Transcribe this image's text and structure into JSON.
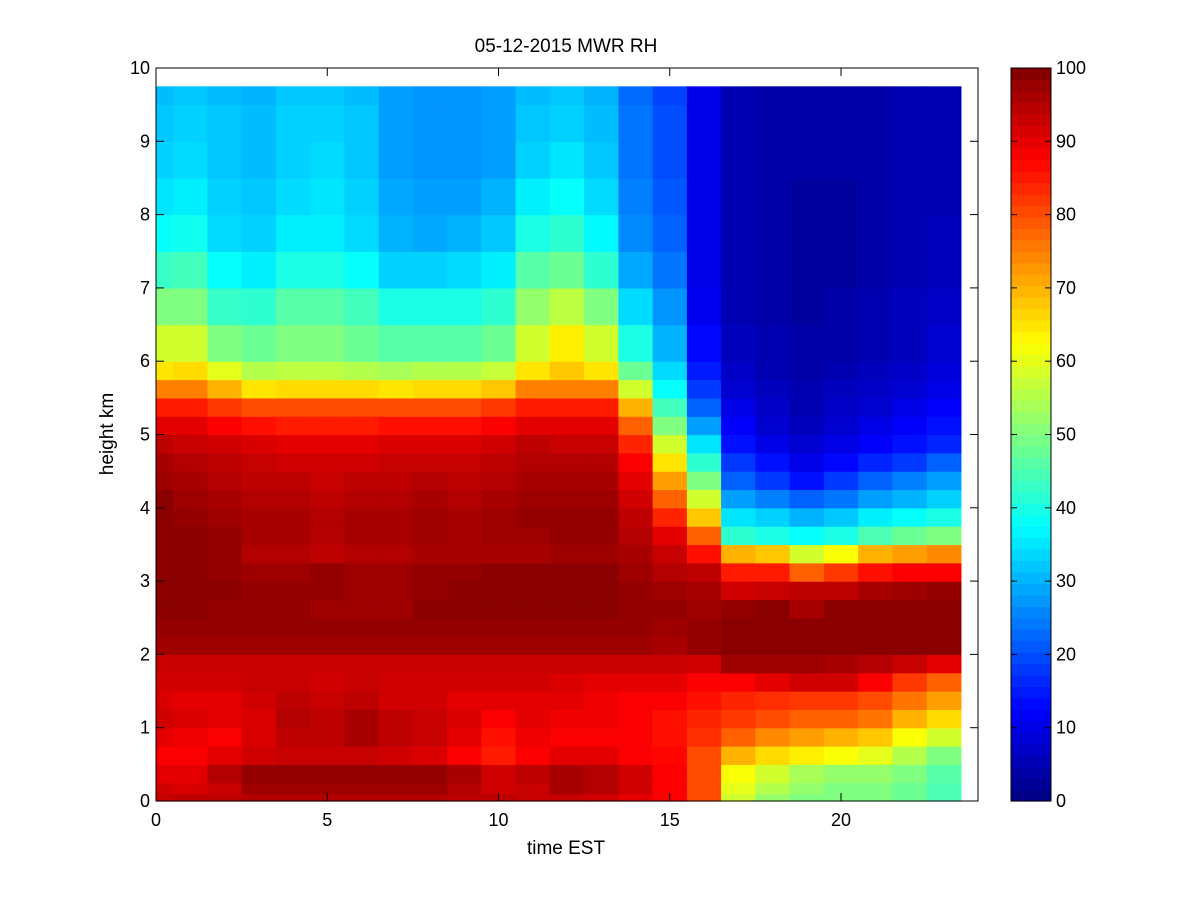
{
  "chart_data": {
    "type": "heatmap",
    "title": "05-12-2015 MWR RH",
    "xlabel": "time EST",
    "ylabel": "height km",
    "xlim": [
      0,
      24
    ],
    "ylim": [
      0,
      10
    ],
    "x_ticks": [
      0,
      5,
      10,
      15,
      20
    ],
    "y_ticks": [
      0,
      1,
      2,
      3,
      4,
      5,
      6,
      7,
      8,
      9,
      10
    ],
    "colorbar": {
      "colormap": "jet",
      "range": [
        0,
        100
      ],
      "ticks": [
        0,
        10,
        20,
        30,
        40,
        50,
        60,
        70,
        80,
        90,
        100
      ]
    },
    "time_hours": [
      0,
      1,
      2,
      3,
      4,
      5,
      6,
      7,
      8,
      9,
      10,
      11,
      12,
      13,
      14,
      15,
      16,
      17,
      18,
      19,
      20,
      21,
      22,
      23
    ],
    "height_km": [
      0.0,
      0.1,
      0.25,
      0.5,
      0.75,
      1.0,
      1.25,
      1.5,
      1.75,
      2.0,
      2.25,
      2.5,
      2.75,
      3.0,
      3.25,
      3.5,
      3.75,
      4.0,
      4.25,
      4.5,
      4.75,
      5.0,
      5.25,
      5.5,
      5.75,
      6.0,
      6.5,
      7.0,
      7.5,
      8.0,
      8.5,
      9.0,
      9.5,
      9.75
    ],
    "rh_percent": [
      [
        93,
        94,
        94,
        95,
        95,
        95,
        95,
        95,
        95,
        94,
        94,
        93,
        93,
        92,
        90,
        88,
        80,
        58,
        52,
        50,
        50,
        50,
        48,
        45
      ],
      [
        92,
        91,
        93,
        97,
        97,
        97,
        97,
        97,
        97,
        95,
        92,
        93,
        96,
        95,
        92,
        88,
        80,
        60,
        55,
        52,
        50,
        50,
        48,
        45
      ],
      [
        90,
        90,
        95,
        98,
        98,
        98,
        98,
        98,
        98,
        96,
        92,
        94,
        96,
        95,
        92,
        88,
        80,
        62,
        58,
        54,
        52,
        52,
        50,
        46
      ],
      [
        88,
        88,
        90,
        92,
        93,
        93,
        93,
        92,
        91,
        88,
        85,
        88,
        90,
        90,
        88,
        87,
        80,
        70,
        66,
        64,
        62,
        60,
        55,
        50
      ],
      [
        90,
        89,
        88,
        91,
        94,
        94,
        96,
        94,
        93,
        90,
        86,
        89,
        88,
        88,
        88,
        86,
        83,
        78,
        74,
        72,
        70,
        68,
        62,
        58
      ],
      [
        92,
        91,
        90,
        91,
        95,
        94,
        96,
        94,
        93,
        91,
        88,
        90,
        89,
        89,
        88,
        86,
        84,
        82,
        80,
        78,
        78,
        76,
        70,
        66
      ],
      [
        91,
        90,
        90,
        92,
        94,
        93,
        94,
        92,
        92,
        90,
        90,
        90,
        90,
        89,
        88,
        88,
        86,
        84,
        83,
        82,
        82,
        80,
        76,
        72
      ],
      [
        92,
        92,
        92,
        93,
        93,
        92,
        93,
        92,
        92,
        92,
        92,
        92,
        91,
        90,
        90,
        90,
        88,
        88,
        90,
        92,
        92,
        88,
        82,
        78
      ],
      [
        93,
        93,
        93,
        93,
        93,
        93,
        93,
        93,
        93,
        93,
        93,
        93,
        93,
        93,
        93,
        93,
        92,
        97,
        97,
        97,
        96,
        95,
        93,
        90
      ],
      [
        97,
        97,
        97,
        97,
        97,
        97,
        97,
        97,
        97,
        97,
        97,
        97,
        97,
        97,
        97,
        96,
        98,
        99,
        99,
        99,
        99,
        99,
        99,
        99
      ],
      [
        98,
        98,
        98,
        98,
        98,
        98,
        98,
        98,
        98,
        98,
        98,
        98,
        98,
        98,
        98,
        97,
        98,
        99,
        99,
        99,
        99,
        99,
        99,
        99
      ],
      [
        99,
        99,
        98,
        98,
        98,
        97,
        97,
        97,
        99,
        99,
        99,
        99,
        99,
        99,
        98,
        98,
        97,
        98,
        99,
        96,
        99,
        99,
        99,
        99
      ],
      [
        99,
        99,
        99,
        98,
        98,
        98,
        97,
        97,
        98,
        99,
        99,
        99,
        99,
        99,
        98,
        97,
        96,
        92,
        93,
        94,
        94,
        96,
        97,
        98
      ],
      [
        99,
        99,
        98,
        97,
        97,
        98,
        97,
        97,
        98,
        98,
        99,
        99,
        99,
        99,
        97,
        95,
        94,
        85,
        85,
        78,
        82,
        86,
        88,
        88
      ],
      [
        99,
        99,
        98,
        95,
        95,
        94,
        95,
        95,
        96,
        96,
        96,
        96,
        97,
        97,
        96,
        93,
        86,
        70,
        68,
        58,
        62,
        70,
        72,
        74
      ],
      [
        99,
        99,
        98,
        96,
        96,
        95,
        96,
        96,
        97,
        96,
        97,
        97,
        98,
        98,
        95,
        90,
        78,
        42,
        40,
        38,
        40,
        45,
        48,
        50
      ],
      [
        99,
        98,
        97,
        96,
        96,
        95,
        96,
        96,
        97,
        96,
        97,
        98,
        98,
        98,
        94,
        84,
        68,
        35,
        33,
        30,
        32,
        36,
        38,
        40
      ],
      [
        99,
        97,
        96,
        95,
        95,
        94,
        95,
        95,
        96,
        95,
        96,
        97,
        97,
        97,
        92,
        78,
        58,
        28,
        25,
        22,
        24,
        28,
        30,
        33
      ],
      [
        97,
        96,
        95,
        94,
        94,
        93,
        94,
        94,
        95,
        94,
        95,
        96,
        96,
        96,
        90,
        72,
        50,
        22,
        18,
        14,
        18,
        22,
        25,
        28
      ],
      [
        96,
        95,
        94,
        93,
        92,
        92,
        92,
        93,
        93,
        93,
        94,
        95,
        95,
        95,
        88,
        65,
        42,
        18,
        14,
        10,
        13,
        16,
        18,
        22
      ],
      [
        94,
        93,
        92,
        91,
        90,
        90,
        90,
        91,
        91,
        91,
        92,
        94,
        93,
        93,
        84,
        58,
        35,
        14,
        10,
        8,
        10,
        12,
        14,
        16
      ],
      [
        90,
        90,
        88,
        86,
        85,
        85,
        85,
        86,
        86,
        86,
        88,
        90,
        90,
        90,
        78,
        50,
        28,
        12,
        8,
        6,
        8,
        10,
        12,
        14
      ],
      [
        85,
        85,
        82,
        80,
        80,
        80,
        80,
        80,
        80,
        80,
        82,
        85,
        85,
        85,
        70,
        44,
        22,
        10,
        7,
        5,
        7,
        8,
        10,
        12
      ],
      [
        75,
        75,
        70,
        65,
        66,
        66,
        66,
        65,
        66,
        66,
        68,
        75,
        75,
        75,
        58,
        38,
        18,
        8,
        6,
        5,
        6,
        7,
        8,
        10
      ],
      [
        65,
        66,
        60,
        55,
        56,
        56,
        55,
        54,
        55,
        55,
        57,
        65,
        68,
        65,
        48,
        34,
        15,
        7,
        5,
        4,
        5,
        6,
        7,
        9
      ],
      [
        58,
        58,
        50,
        48,
        50,
        50,
        48,
        46,
        46,
        46,
        48,
        58,
        64,
        58,
        40,
        30,
        13,
        6,
        5,
        4,
        4,
        5,
        6,
        8
      ],
      [
        50,
        50,
        43,
        42,
        46,
        46,
        44,
        40,
        40,
        40,
        42,
        52,
        56,
        50,
        34,
        27,
        11,
        5,
        4,
        3,
        4,
        5,
        6,
        7
      ],
      [
        43,
        44,
        38,
        36,
        40,
        40,
        38,
        33,
        33,
        34,
        36,
        46,
        48,
        42,
        29,
        24,
        10,
        5,
        4,
        3,
        3,
        4,
        5,
        6
      ],
      [
        38,
        39,
        34,
        33,
        36,
        36,
        34,
        30,
        29,
        30,
        32,
        40,
        42,
        37,
        26,
        22,
        10,
        5,
        4,
        3,
        3,
        4,
        5,
        6
      ],
      [
        35,
        36,
        33,
        32,
        34,
        35,
        33,
        29,
        28,
        28,
        30,
        36,
        38,
        34,
        25,
        21,
        10,
        5,
        4,
        3,
        3,
        4,
        5,
        5
      ],
      [
        33,
        34,
        32,
        31,
        33,
        34,
        32,
        28,
        27,
        27,
        28,
        33,
        35,
        32,
        24,
        20,
        10,
        5,
        4,
        4,
        4,
        4,
        5,
        5
      ],
      [
        32,
        33,
        32,
        31,
        33,
        33,
        32,
        28,
        27,
        27,
        28,
        32,
        33,
        31,
        24,
        20,
        10,
        5,
        4,
        4,
        4,
        4,
        5,
        5
      ],
      [
        31,
        32,
        31,
        30,
        32,
        32,
        31,
        28,
        27,
        27,
        28,
        31,
        32,
        30,
        23,
        19,
        10,
        5,
        4,
        4,
        4,
        4,
        5,
        5
      ],
      [
        31,
        32,
        31,
        30,
        32,
        32,
        31,
        28,
        27,
        27,
        28,
        31,
        32,
        30,
        23,
        19,
        10,
        5,
        4,
        4,
        4,
        4,
        5,
        5
      ]
    ]
  }
}
